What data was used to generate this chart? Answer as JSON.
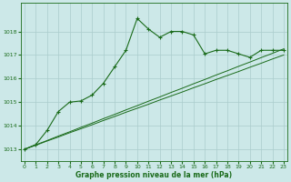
{
  "xlabel": "Graphe pression niveau de la mer (hPa)",
  "bg_color": "#cce8e8",
  "grid_color": "#aacccc",
  "line_color": "#1a6b1a",
  "x_values": [
    0,
    1,
    2,
    3,
    4,
    5,
    6,
    7,
    8,
    9,
    10,
    11,
    12,
    13,
    14,
    15,
    16,
    17,
    18,
    19,
    20,
    21,
    22,
    23
  ],
  "series1": [
    1013.0,
    1013.2,
    1013.8,
    1014.6,
    1015.0,
    1015.05,
    1015.3,
    1015.8,
    1016.5,
    1017.2,
    1018.55,
    1018.1,
    1017.75,
    1018.0,
    1018.0,
    1017.85,
    1017.05,
    1017.2,
    1017.2,
    1017.05,
    1016.9,
    1017.2,
    1017.2,
    1017.2
  ],
  "series2": [
    1013.0,
    1013.17,
    1013.35,
    1013.52,
    1013.7,
    1013.87,
    1014.04,
    1014.22,
    1014.39,
    1014.57,
    1014.74,
    1014.91,
    1015.09,
    1015.26,
    1015.43,
    1015.61,
    1015.78,
    1015.96,
    1016.13,
    1016.3,
    1016.48,
    1016.65,
    1016.83,
    1017.0
  ],
  "series3": [
    1013.0,
    1013.19,
    1013.37,
    1013.56,
    1013.74,
    1013.93,
    1014.11,
    1014.3,
    1014.48,
    1014.67,
    1014.85,
    1015.04,
    1015.22,
    1015.41,
    1015.59,
    1015.78,
    1015.96,
    1016.15,
    1016.33,
    1016.52,
    1016.7,
    1016.89,
    1017.07,
    1017.26
  ],
  "ylim": [
    1012.5,
    1019.2
  ],
  "yticks": [
    1013,
    1014,
    1015,
    1016,
    1017,
    1018
  ],
  "xlim": [
    -0.3,
    23.3
  ],
  "xticks": [
    0,
    1,
    2,
    3,
    4,
    5,
    6,
    7,
    8,
    9,
    10,
    11,
    12,
    13,
    14,
    15,
    16,
    17,
    18,
    19,
    20,
    21,
    22,
    23
  ],
  "figsize": [
    3.2,
    2.0
  ],
  "dpi": 100
}
